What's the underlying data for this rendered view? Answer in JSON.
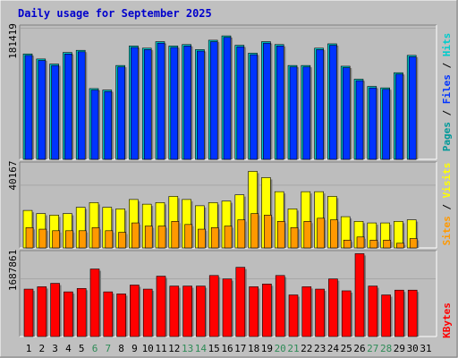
{
  "title": "Daily usage for September 2025",
  "colors": {
    "background": "#c0c0c0",
    "plot": "#bdbdbd",
    "title_text": "#0000cc",
    "hits": "#00cccc",
    "files": "#0033ff",
    "pages": "#009999",
    "visits": "#ffff00",
    "sites": "#ff9900",
    "kbytes": "#ff0000",
    "weekday_label": "#000000",
    "weekend_label": "#2e8b57"
  },
  "chart_data": [
    {
      "type": "bar",
      "panel": "hits-files-pages",
      "categories": [
        "1",
        "2",
        "3",
        "4",
        "5",
        "6",
        "7",
        "8",
        "9",
        "10",
        "11",
        "12",
        "13",
        "14",
        "15",
        "16",
        "17",
        "18",
        "19",
        "20",
        "21",
        "22",
        "23",
        "24",
        "25",
        "26",
        "27",
        "28",
        "29",
        "30",
        "31"
      ],
      "weekend_days": [
        "6",
        "7",
        "13",
        "14",
        "20",
        "21",
        "27",
        "28"
      ],
      "y_tick": 181419,
      "ylabel_parts": [
        "Pages",
        "Files",
        "Hits"
      ],
      "ylim": [
        0,
        186000
      ],
      "series": [
        {
          "name": "Hits",
          "values": [
            146000,
            139000,
            132000,
            148000,
            151000,
            98000,
            96000,
            130000,
            157000,
            154000,
            163000,
            157000,
            159000,
            152000,
            165000,
            171000,
            158000,
            147000,
            163000,
            159000,
            130000,
            130000,
            154000,
            160000,
            129000,
            111000,
            101000,
            99000,
            120000,
            144000,
            0
          ]
        },
        {
          "name": "Files",
          "values": [
            144000,
            137000,
            130000,
            146000,
            149000,
            96000,
            94000,
            128000,
            155000,
            152000,
            161000,
            155000,
            157000,
            150000,
            163000,
            169000,
            156000,
            145000,
            161000,
            157000,
            128000,
            128000,
            152000,
            158000,
            127000,
            109000,
            99000,
            97000,
            118000,
            142000,
            0
          ]
        },
        {
          "name": "Pages",
          "values": [
            0,
            0,
            0,
            0,
            0,
            0,
            0,
            0,
            0,
            0,
            0,
            0,
            0,
            0,
            0,
            0,
            0,
            0,
            0,
            0,
            0,
            0,
            0,
            0,
            0,
            0,
            0,
            0,
            0,
            0,
            0
          ]
        }
      ]
    },
    {
      "type": "bar",
      "panel": "visits-sites",
      "categories": [
        "1",
        "2",
        "3",
        "4",
        "5",
        "6",
        "7",
        "8",
        "9",
        "10",
        "11",
        "12",
        "13",
        "14",
        "15",
        "16",
        "17",
        "18",
        "19",
        "20",
        "21",
        "22",
        "23",
        "24",
        "25",
        "26",
        "27",
        "28",
        "29",
        "30",
        "31"
      ],
      "y_tick": 40167,
      "ylabel_parts": [
        "Sites",
        "Visits"
      ],
      "ylim": [
        0,
        55000
      ],
      "series": [
        {
          "name": "Visits",
          "values": [
            24000,
            22000,
            21000,
            22000,
            26000,
            29000,
            26000,
            25000,
            31000,
            28000,
            29000,
            33000,
            31000,
            27000,
            29000,
            30000,
            34000,
            49000,
            45000,
            36000,
            25000,
            36000,
            36000,
            33000,
            20000,
            17000,
            16000,
            16000,
            17000,
            18000,
            0
          ]
        },
        {
          "name": "Sites",
          "values": [
            13000,
            12000,
            11000,
            11000,
            11000,
            13000,
            11000,
            10000,
            16000,
            14000,
            14000,
            17000,
            15000,
            12000,
            13000,
            14000,
            18000,
            22000,
            21000,
            17000,
            13000,
            17000,
            19000,
            18000,
            5000,
            7000,
            5000,
            5000,
            3000,
            6000,
            0
          ]
        }
      ]
    },
    {
      "type": "bar",
      "panel": "kbytes",
      "categories": [
        "1",
        "2",
        "3",
        "4",
        "5",
        "6",
        "7",
        "8",
        "9",
        "10",
        "11",
        "12",
        "13",
        "14",
        "15",
        "16",
        "17",
        "18",
        "19",
        "20",
        "21",
        "22",
        "23",
        "24",
        "25",
        "26",
        "27",
        "28",
        "29",
        "30",
        "31"
      ],
      "y_tick": 1687861,
      "ylabel_parts": [
        "KBytes"
      ],
      "ylim": [
        0,
        2520000
      ],
      "series": [
        {
          "name": "KBytes",
          "values": [
            1390000,
            1460000,
            1560000,
            1310000,
            1410000,
            1980000,
            1310000,
            1250000,
            1510000,
            1390000,
            1770000,
            1480000,
            1480000,
            1480000,
            1790000,
            1690000,
            2030000,
            1460000,
            1540000,
            1790000,
            1220000,
            1460000,
            1390000,
            1690000,
            1340000,
            2430000,
            1480000,
            1220000,
            1360000,
            1360000,
            0
          ]
        }
      ]
    }
  ]
}
